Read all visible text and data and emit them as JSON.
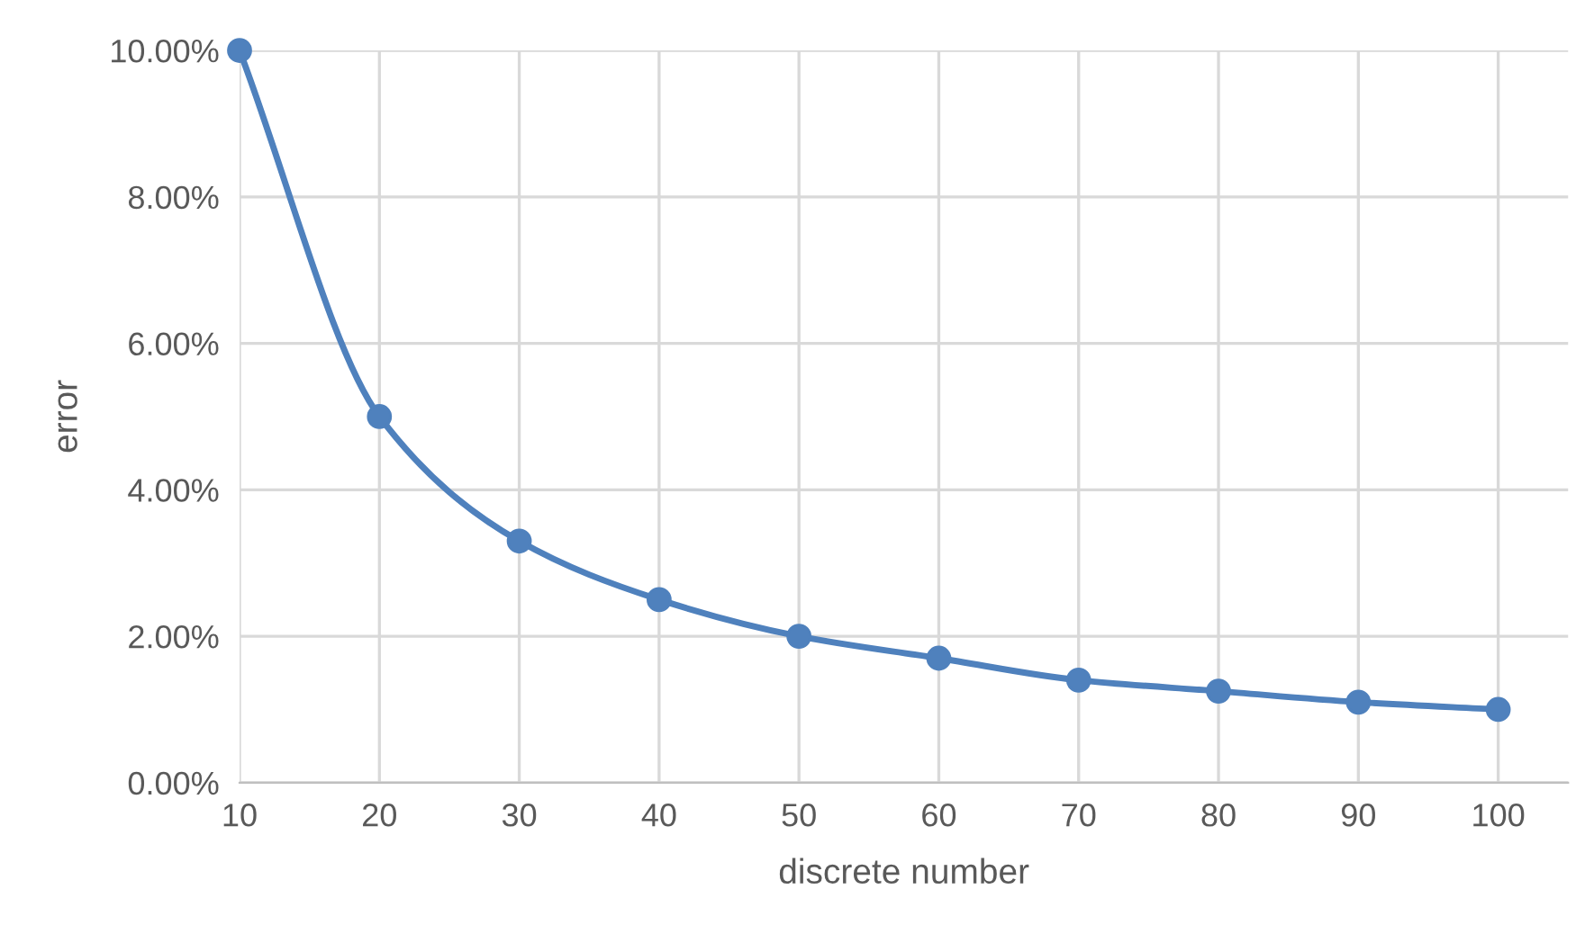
{
  "chart_data": {
    "type": "line",
    "xlabel": "discrete number",
    "ylabel": "error",
    "x": [
      10,
      20,
      30,
      40,
      50,
      60,
      70,
      80,
      90,
      100
    ],
    "series": [
      {
        "color": "#4f81bd",
        "values": [
          10.0,
          5.0,
          3.3,
          2.5,
          2.0,
          1.7,
          1.4,
          1.25,
          1.1,
          1.0
        ]
      }
    ],
    "xlim": [
      10,
      105
    ],
    "xticks": [
      10,
      20,
      30,
      40,
      50,
      60,
      70,
      80,
      90,
      100
    ],
    "ylim": [
      0,
      10
    ],
    "yticks": [
      {
        "value": 0,
        "label": "0.00%"
      },
      {
        "value": 2,
        "label": "2.00%"
      },
      {
        "value": 4,
        "label": "4.00%"
      },
      {
        "value": 6,
        "label": "6.00%"
      },
      {
        "value": 8,
        "label": "8.00%"
      },
      {
        "value": 10,
        "label": "10.00%"
      }
    ],
    "grid": true,
    "marker": "circle",
    "line_style": "solid",
    "legend": false
  }
}
